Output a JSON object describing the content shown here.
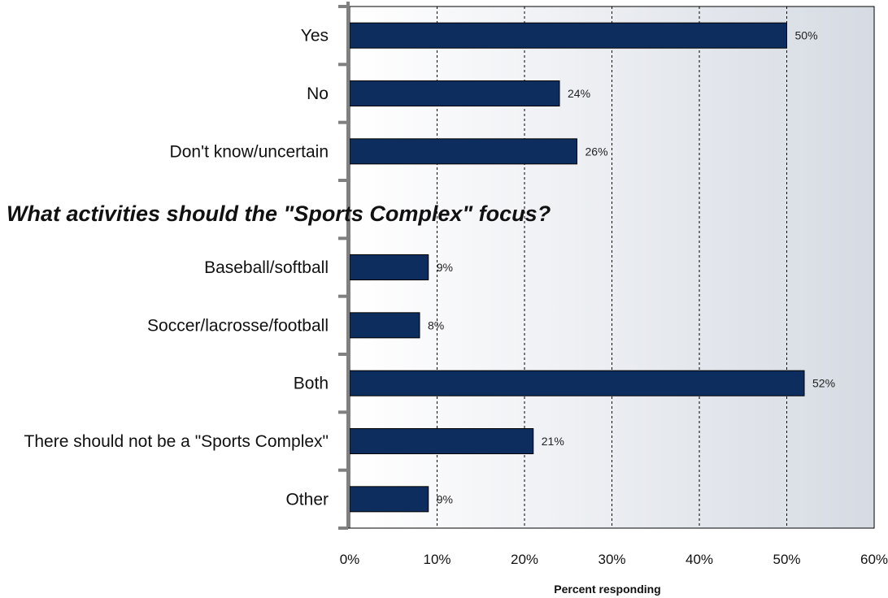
{
  "chart_data": {
    "type": "bar",
    "orientation": "horizontal",
    "categories": [
      "Yes",
      "No",
      "Don't know/uncertain",
      "",
      "Baseball/softball",
      "Soccer/lacrosse/football",
      "Both",
      "There should not be a \"Sports Complex\"",
      "Other"
    ],
    "values": [
      50,
      24,
      26,
      null,
      9,
      8,
      52,
      21,
      9
    ],
    "value_labels": [
      "50%",
      "24%",
      "26%",
      "",
      "9%",
      "8%",
      "52%",
      "21%",
      "9%"
    ],
    "section_heading": "What activities should the \"Sports Complex\" focus?",
    "xlabel": "Percent responding",
    "xlim": [
      0,
      60
    ],
    "xticks": [
      "0%",
      "10%",
      "20%",
      "30%",
      "40%",
      "50%",
      "60%"
    ],
    "grid": "vertical dashed",
    "colors": {
      "bar": "#0d2d5e",
      "axis": "#808080",
      "grid": "#000000",
      "background_start": "#ffffff",
      "background_end": "#d6dbe3"
    }
  }
}
